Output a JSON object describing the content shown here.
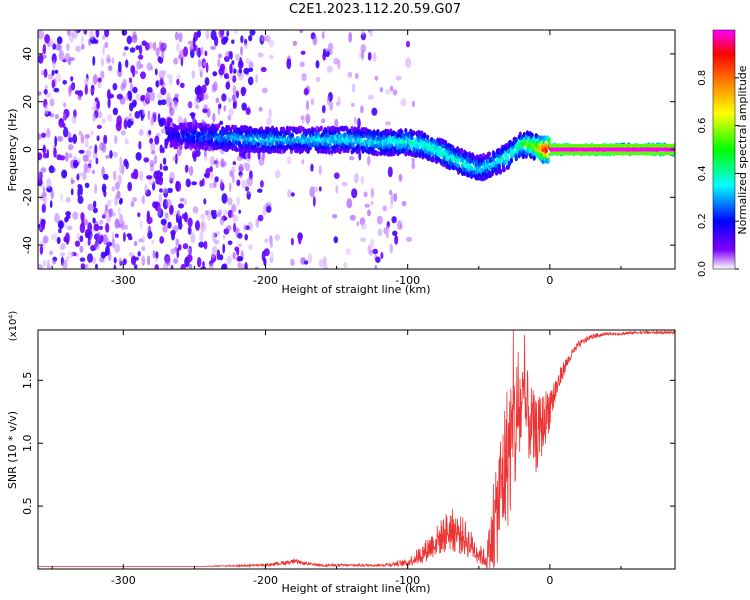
{
  "title": "C2E1.2023.112.20.59.G07",
  "chart_data": [
    {
      "type": "heatmap",
      "xlabel": "Height of straight line (km)",
      "ylabel": "Frequency (Hz)",
      "xlim": [
        -360,
        88
      ],
      "ylim": [
        -50,
        50
      ],
      "x_ticks": [
        -300,
        -200,
        -100,
        0
      ],
      "y_ticks": [
        -40,
        -20,
        0,
        20,
        40
      ],
      "colorbar": {
        "label": "Normalized spectral amplitude",
        "range": [
          0,
          1
        ],
        "ticks": [
          "0.0",
          "0.2",
          "0.4",
          "0.6",
          "0.8"
        ],
        "colors": [
          "#ffffff",
          "#8000ff",
          "#0000ff",
          "#00ffff",
          "#00ff00",
          "#ffff00",
          "#ff8000",
          "#ff0000",
          "#ff00ff"
        ]
      },
      "ridge": {
        "x": [
          -265,
          -230,
          -200,
          -180,
          -160,
          -140,
          -120,
          -100,
          -90,
          -80,
          -70,
          -60,
          -50,
          -40,
          -30,
          -20,
          -15,
          -10,
          -5,
          0,
          20,
          40,
          60,
          88
        ],
        "y": [
          6,
          5,
          4,
          4,
          4,
          4,
          3,
          3,
          2,
          0,
          -3,
          -6,
          -8,
          -6,
          -3,
          2,
          2,
          1,
          0,
          0,
          0,
          0,
          0,
          0
        ],
        "amplitude": [
          0.2,
          0.3,
          0.35,
          0.3,
          0.35,
          0.35,
          0.35,
          0.4,
          0.4,
          0.4,
          0.4,
          0.4,
          0.35,
          0.35,
          0.4,
          0.45,
          0.55,
          0.6,
          0.9,
          1.0,
          1.0,
          1.0,
          1.0,
          1.0
        ]
      }
    },
    {
      "type": "line",
      "xlabel": "Height of straight line (km)",
      "ylabel": "SNR (10 * v/v)",
      "multiplier": "(x10⁴)",
      "xlim": [
        -360,
        88
      ],
      "ylim": [
        0,
        1.9
      ],
      "x_ticks": [
        -300,
        -200,
        -100,
        0
      ],
      "y_ticks": [
        "0.5",
        "1.0",
        "1.5"
      ],
      "series": [
        {
          "color": "#ee3333",
          "x": [
            -360,
            -300,
            -250,
            -200,
            -180,
            -170,
            -160,
            -150,
            -120,
            -100,
            -90,
            -80,
            -70,
            -60,
            -50,
            -45,
            -40,
            -35,
            -30,
            -25,
            -20,
            -15,
            -10,
            -5,
            0,
            5,
            10,
            15,
            20,
            25,
            30,
            40,
            50,
            60,
            70,
            88
          ],
          "y": [
            0.02,
            0.02,
            0.02,
            0.03,
            0.06,
            0.04,
            0.03,
            0.03,
            0.03,
            0.05,
            0.12,
            0.22,
            0.32,
            0.25,
            0.12,
            0.08,
            0.25,
            0.6,
            0.9,
            1.1,
            1.3,
            1.2,
            1.05,
            1.15,
            1.3,
            1.45,
            1.6,
            1.7,
            1.78,
            1.82,
            1.85,
            1.87,
            1.87,
            1.88,
            1.88,
            1.88
          ],
          "noise": [
            0,
            0,
            0,
            0.01,
            0.02,
            0.01,
            0.01,
            0.01,
            0.01,
            0.03,
            0.08,
            0.12,
            0.18,
            0.15,
            0.08,
            0.08,
            0.3,
            0.5,
            0.6,
            0.6,
            0.45,
            0.35,
            0.3,
            0.25,
            0.18,
            0.1,
            0.06,
            0.04,
            0.03,
            0.02,
            0.02,
            0.01,
            0.01,
            0.01,
            0.01,
            0.01
          ]
        }
      ]
    }
  ]
}
